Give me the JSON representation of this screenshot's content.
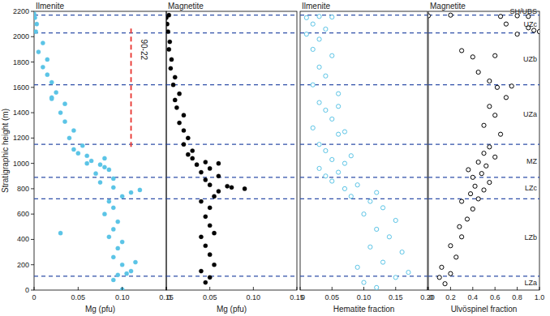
{
  "chart_data": [
    {
      "type": "scatter",
      "title": "Ilmenite",
      "xlabel": "Mg (pfu)",
      "ylabel": "Stratigraphic height (m)",
      "xlim": [
        0,
        0.15
      ],
      "xticks": [
        0,
        0.05,
        {
          "value": 0.1,
          "label": "0.10"
        },
        0.15
      ],
      "ylim": [
        0,
        2200
      ],
      "yticks": [
        0,
        200,
        400,
        600,
        800,
        1000,
        1200,
        1400,
        1600,
        1800,
        2000,
        2200
      ],
      "grid": false,
      "annotations": [
        {
          "text": "90-22",
          "x": 0.11,
          "y_from": 1130,
          "y_to": 2090,
          "color": "#e8322d",
          "line_style": "dashed"
        }
      ],
      "series": [
        {
          "color": "#5bc4e6",
          "marker": "circle",
          "x": [
            0.1,
            0.09,
            0.095,
            0.11,
            0.105,
            0.1,
            0.115,
            0.09,
            0.095,
            0.1,
            0.085,
            0.03,
            0.09,
            0.095,
            0.08,
            0.09,
            0.085,
            0.1,
            0.11,
            0.12,
            0.09,
            0.075,
            0.09,
            0.07,
            0.085,
            0.075,
            0.065,
            0.08,
            0.06,
            0.05,
            0.045,
            0.055,
            0.04,
            0.045,
            0.035,
            0.03,
            0.035,
            0.02,
            0.025,
            0.02,
            0.015,
            0.01,
            0.015,
            0.005,
            0.01,
            0.002,
            0.003,
            0.001,
            0.0,
            0.02,
            0.06,
            0.08
          ],
          "values": [
            5,
            80,
            120,
            150,
            130,
            200,
            220,
            260,
            330,
            380,
            420,
            450,
            480,
            540,
            600,
            650,
            700,
            740,
            770,
            790,
            810,
            850,
            880,
            920,
            950,
            990,
            1020,
            1040,
            1060,
            1080,
            1110,
            1140,
            1200,
            1260,
            1330,
            1400,
            1470,
            1520,
            1560,
            1640,
            1700,
            1760,
            1820,
            1880,
            1950,
            2040,
            2100,
            2150,
            2180,
            1510,
            1000,
            970
          ]
        }
      ]
    },
    {
      "type": "scatter",
      "title": "Magnetite",
      "xlabel": "Mg (pfu)",
      "xlim": [
        0,
        0.15
      ],
      "xticks": [
        0,
        0.05,
        {
          "value": 0.1,
          "label": "0.10"
        },
        0.15
      ],
      "ylim": [
        0,
        2200
      ],
      "grid": false,
      "tick_labels": "x",
      "series": [
        {
          "color": "#000000",
          "marker": "circle",
          "x": [
            0.05,
            0.045,
            0.04,
            0.055,
            0.05,
            0.045,
            0.04,
            0.055,
            0.05,
            0.045,
            0.05,
            0.04,
            0.055,
            0.06,
            0.09,
            0.075,
            0.05,
            0.045,
            0.06,
            0.04,
            0.05,
            0.035,
            0.045,
            0.03,
            0.025,
            0.03,
            0.02,
            0.025,
            0.02,
            0.015,
            0.02,
            0.012,
            0.01,
            0.015,
            0.008,
            0.01,
            0.005,
            0.006,
            0.003,
            0.004,
            0.002,
            0.001,
            0.0,
            0.003,
            0.07,
            0.06
          ],
          "values": [
            100,
            60,
            150,
            200,
            280,
            350,
            420,
            450,
            510,
            580,
            650,
            700,
            740,
            780,
            800,
            810,
            830,
            870,
            900,
            930,
            960,
            990,
            1010,
            1040,
            1070,
            1100,
            1150,
            1200,
            1260,
            1320,
            1380,
            1440,
            1500,
            1550,
            1620,
            1680,
            1750,
            1820,
            1900,
            1960,
            2040,
            2100,
            2150,
            2170,
            820,
            1000
          ]
        }
      ]
    },
    {
      "type": "scatter",
      "title": "Ilmenite",
      "xlabel": "Hematite fraction",
      "xlim": [
        0,
        0.2
      ],
      "xticks": [
        0,
        0.05,
        {
          "value": 0.1,
          "label": "0.10"
        },
        0.15,
        {
          "value": 0.2,
          "label": "0.20"
        }
      ],
      "ylim": [
        0,
        2200
      ],
      "grid": false,
      "tick_labels": "x",
      "series": [
        {
          "color": "#5bc4e6",
          "marker": "open-circle",
          "x": [
            0.12,
            0.1,
            0.15,
            0.17,
            0.09,
            0.13,
            0.16,
            0.11,
            0.14,
            0.12,
            0.15,
            0.1,
            0.13,
            0.11,
            0.08,
            0.12,
            0.07,
            0.09,
            0.05,
            0.04,
            0.06,
            0.03,
            0.07,
            0.05,
            0.08,
            0.04,
            0.03,
            0.06,
            0.02,
            0.05,
            0.04,
            0.03,
            0.06,
            0.02,
            0.04,
            0.03,
            0.05,
            0.02,
            0.03,
            0.01,
            0.04,
            0.02,
            0.01,
            0.03,
            0.05,
            0.06,
            0.07
          ],
          "values": [
            20,
            60,
            100,
            140,
            180,
            220,
            300,
            340,
            420,
            480,
            550,
            600,
            650,
            700,
            740,
            770,
            800,
            830,
            860,
            900,
            930,
            960,
            1000,
            1030,
            1060,
            1100,
            1150,
            1230,
            1280,
            1350,
            1420,
            1480,
            1550,
            1620,
            1690,
            1760,
            1850,
            1900,
            1980,
            2020,
            2060,
            2100,
            2150,
            2160,
            2155,
            1450,
            1250
          ]
        }
      ]
    },
    {
      "type": "scatter",
      "title": "Magnetite",
      "xlabel": "Ulvöspinel fraction",
      "xlim": [
        0,
        1.0
      ],
      "xticks": [
        0,
        0.2,
        0.4,
        0.6,
        0.8,
        {
          "value": 1.0,
          "label": "1.0"
        }
      ],
      "ylim": [
        0,
        2200
      ],
      "grid": false,
      "tick_labels": "x",
      "zones": [
        {
          "label": "LZa",
          "from": 0,
          "to": 110
        },
        {
          "label": "LZb",
          "from": 110,
          "to": 720
        },
        {
          "label": "LZc",
          "from": 720,
          "to": 890
        },
        {
          "label": "MZ",
          "from": 890,
          "to": 1150
        },
        {
          "label": "UZa",
          "from": 1150,
          "to": 1620
        },
        {
          "label": "UZb",
          "from": 1620,
          "to": 2030
        },
        {
          "label": "UZc",
          "from": 2030,
          "to": 2170
        },
        {
          "label": "SH/UBS",
          "from": 2170,
          "to": 2200
        }
      ],
      "series": [
        {
          "color": "#000000",
          "marker": "open-circle",
          "x": [
            0.15,
            0.1,
            0.2,
            0.12,
            0.25,
            0.2,
            0.3,
            0.28,
            0.35,
            0.4,
            0.3,
            0.45,
            0.38,
            0.5,
            0.42,
            0.55,
            0.4,
            0.48,
            0.36,
            0.52,
            0.45,
            0.6,
            0.5,
            0.55,
            0.65,
            0.5,
            0.6,
            0.55,
            0.7,
            0.62,
            0.75,
            0.55,
            0.45,
            0.4,
            0.3,
            0.6,
            0.8,
            0.95,
            0.9,
            1.0,
            0.7,
            0.65,
            0.8,
            0.9,
            0.2,
            0.0
          ],
          "values": [
            50,
            100,
            130,
            180,
            260,
            350,
            420,
            500,
            560,
            640,
            700,
            720,
            760,
            790,
            820,
            850,
            890,
            920,
            950,
            980,
            1010,
            1050,
            1080,
            1130,
            1230,
            1300,
            1380,
            1450,
            1520,
            1600,
            1610,
            1650,
            1720,
            1840,
            1890,
            1850,
            2020,
            2050,
            2070,
            2040,
            2100,
            2160,
            2165,
            2160,
            2170,
            2165
          ]
        }
      ]
    }
  ]
}
